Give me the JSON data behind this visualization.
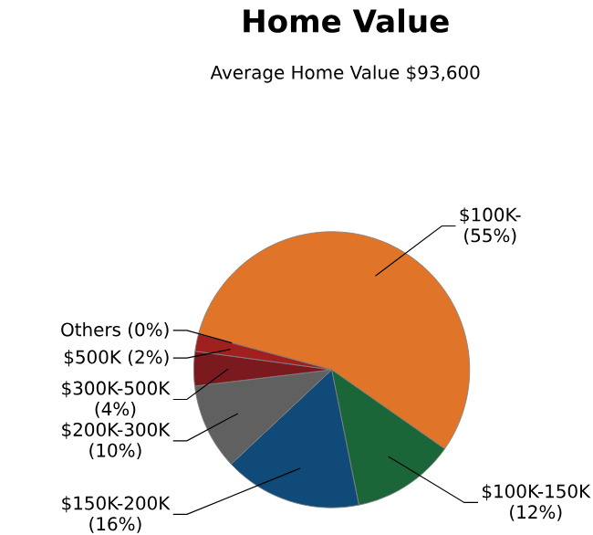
{
  "chart_data": {
    "type": "pie",
    "title": "Home Value",
    "subtitle": "Average Home Value  $93,600",
    "categories": [
      "$100K-",
      "$100K-150K",
      "$150K-200K",
      "$200K-300K",
      "$300K-500K",
      "$500K",
      "Others"
    ],
    "values": [
      55,
      12,
      16,
      10,
      4,
      2,
      0
    ],
    "value_labels": [
      "(55%)",
      "(12%)",
      "(16%)",
      "(10%)",
      "(4%)",
      "(2%)",
      "(0%)"
    ],
    "colors": [
      "#e07428",
      "#1b6638",
      "#0f4a78",
      "#606060",
      "#7a1a1e",
      "#a02020",
      "#35b8d8"
    ]
  }
}
